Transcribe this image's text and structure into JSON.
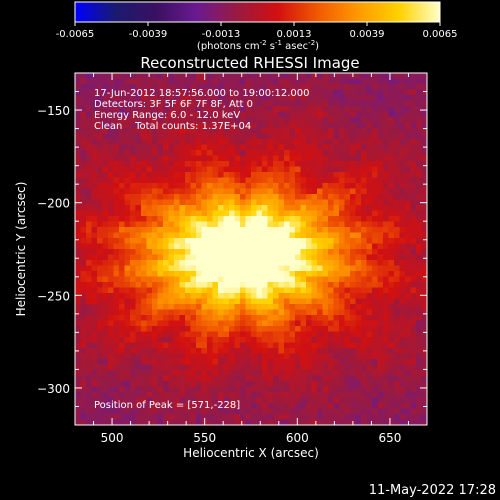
{
  "chart_data": {
    "type": "heatmap",
    "title": "Reconstructed RHESSI Image",
    "xlabel": "Heliocentric X (arcsec)",
    "ylabel": "Heliocentric Y (arcsec)",
    "xlim": [
      480,
      670
    ],
    "ylim": [
      -320,
      -130
    ],
    "xticks": [
      500,
      550,
      600,
      650
    ],
    "yticks": [
      -150,
      -200,
      -250,
      -300
    ],
    "colorbar": {
      "range": [
        -0.0065,
        0.0065
      ],
      "ticks": [
        "-0.0065",
        "-0.0039",
        "-0.0013",
        "0.0013",
        "0.0039",
        "0.0065"
      ],
      "units_text": "(photons cm",
      "units_exp1": "-2",
      "units_mid": " s",
      "units_exp2": "-1",
      "units_mid2": " asec",
      "units_exp3": "-2",
      "units_end": ")",
      "colormap": [
        "#0000ff",
        "#1a1a70",
        "#3a1060",
        "#6a1a90",
        "#9a1a40",
        "#d21010",
        "#f25a00",
        "#ff9a00",
        "#ffd200",
        "#ffffcc"
      ]
    },
    "source": {
      "x": 571,
      "y": -228,
      "peak_value": 0.0065,
      "background_value": -0.0013
    },
    "annotations": {
      "line1": "17-Jun-2012 18:57:56.000 to 19:00:12.000",
      "line2": "Detectors: 3F 5F 6F 7F 8F, Att 0",
      "line3": "Energy Range: 6.0 - 12.0 keV",
      "line4": "Clean    Total counts: 1.37E+04",
      "peak": "Position of Peak = [571,-228]"
    },
    "timestamp": "11-May-2022 17:28"
  }
}
